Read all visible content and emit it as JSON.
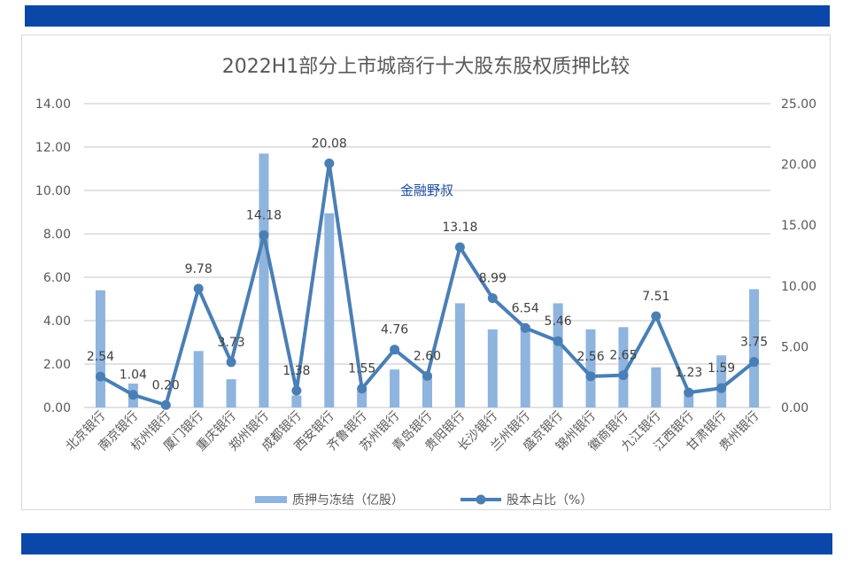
{
  "chart_data": {
    "type": "bar+line",
    "title": "2022H1部分上市城商行十大股东股权质押比较",
    "watermark": "金融野叔",
    "categories": [
      "北京银行",
      "南京银行",
      "杭州银行",
      "厦门银行",
      "重庆银行",
      "郑州银行",
      "成都银行",
      "西安银行",
      "齐鲁银行",
      "苏州银行",
      "青岛银行",
      "贵阳银行",
      "长沙银行",
      "兰州银行",
      "盛京银行",
      "锦州银行",
      "徽商银行",
      "九江银行",
      "江西银行",
      "甘肃银行",
      "贵州银行"
    ],
    "series": [
      {
        "name": "质押与冻结（亿股）",
        "type": "bar",
        "axis": "left",
        "color": "#8fb4de",
        "values": [
          5.4,
          1.1,
          0.05,
          2.6,
          1.3,
          11.7,
          0.55,
          8.95,
          0.8,
          1.75,
          1.5,
          4.8,
          3.6,
          3.8,
          4.8,
          3.6,
          3.7,
          1.85,
          0.8,
          2.4,
          5.45
        ]
      },
      {
        "name": "股本占比（%）",
        "type": "line",
        "axis": "right",
        "color": "#4a7fb5",
        "values": [
          2.54,
          1.04,
          0.2,
          9.78,
          3.73,
          14.18,
          1.38,
          20.08,
          1.55,
          4.76,
          2.6,
          13.18,
          8.99,
          6.54,
          5.46,
          2.56,
          2.65,
          7.51,
          1.23,
          1.59,
          3.75
        ],
        "labels": [
          "2.54",
          "1.04",
          "0.20",
          "9.78",
          "3.73",
          "14.18",
          "1.38",
          "20.08",
          "1.55",
          "4.76",
          "2.60",
          "13.18",
          "8.99",
          "6.54",
          "5.46",
          "2.56",
          "2.65",
          "7.51",
          "1.23",
          "1.59",
          "3.75"
        ]
      }
    ],
    "left_axis": {
      "ylim": [
        0,
        14
      ],
      "ticks": [
        "0.00",
        "2.00",
        "4.00",
        "6.00",
        "8.00",
        "10.00",
        "12.00",
        "14.00"
      ]
    },
    "right_axis": {
      "ylim": [
        0,
        25
      ],
      "ticks": [
        "0.00",
        "5.00",
        "10.00",
        "15.00",
        "20.00",
        "25.00"
      ]
    },
    "grid": true,
    "legend_position": "bottom",
    "band_color": "#0a47a8"
  }
}
